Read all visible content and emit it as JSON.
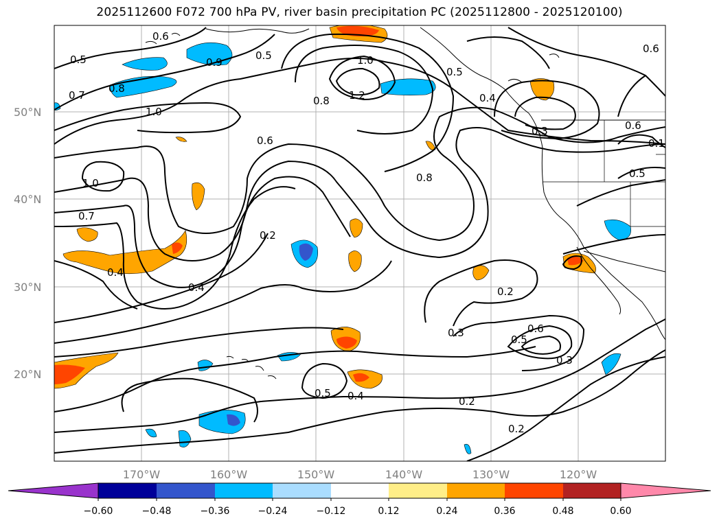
{
  "title": "2025112600 F072 700 hPa PV, river basin precipitation PC (2025112800 - 2025120100)",
  "latitude_labels": [
    "50°N",
    "40°N",
    "30°N",
    "20°N"
  ],
  "longitude_labels": [
    "170°W",
    "160°W",
    "150°W",
    "140°W",
    "130°W",
    "120°W"
  ],
  "colorbar": {
    "tick_labels": [
      "−0.60",
      "−0.48",
      "−0.36",
      "−0.24",
      "−0.12",
      "0.12",
      "0.24",
      "0.36",
      "0.48",
      "0.60"
    ],
    "colors": [
      "#9933cc",
      "#000099",
      "#3355cc",
      "#00bbff",
      "#aaddff",
      "#ffffff",
      "#ffee88",
      "#ffa500",
      "#ff4500",
      "#b22222",
      "#ff88aa"
    ]
  },
  "contour_labels": {
    "c1": "0.6",
    "c2": "0.5",
    "c3": "0.9",
    "c4": "0.5",
    "c5": "0.8",
    "c6": "0.7",
    "c7": "1.0",
    "c8": "1.0",
    "c9": "1.2",
    "c10": "0.8",
    "c11": "0.6",
    "c12": "0.5",
    "c13": "0.4",
    "c14": "0.6",
    "c15": "0.3",
    "c16": "0.6",
    "c17": "0.1",
    "c18": "1.0",
    "c19": "0.7",
    "c20": "0.8",
    "c21": "0.5",
    "c22": "0.2",
    "c23": "0.4",
    "c24": "0.4",
    "c25": "0.2",
    "c26": "0.3",
    "c27": "0.5",
    "c28": "0.6",
    "c29": "0.3",
    "c30": "0.5",
    "c31": "0.4",
    "c32": "0.2",
    "c33": "0.2"
  }
}
